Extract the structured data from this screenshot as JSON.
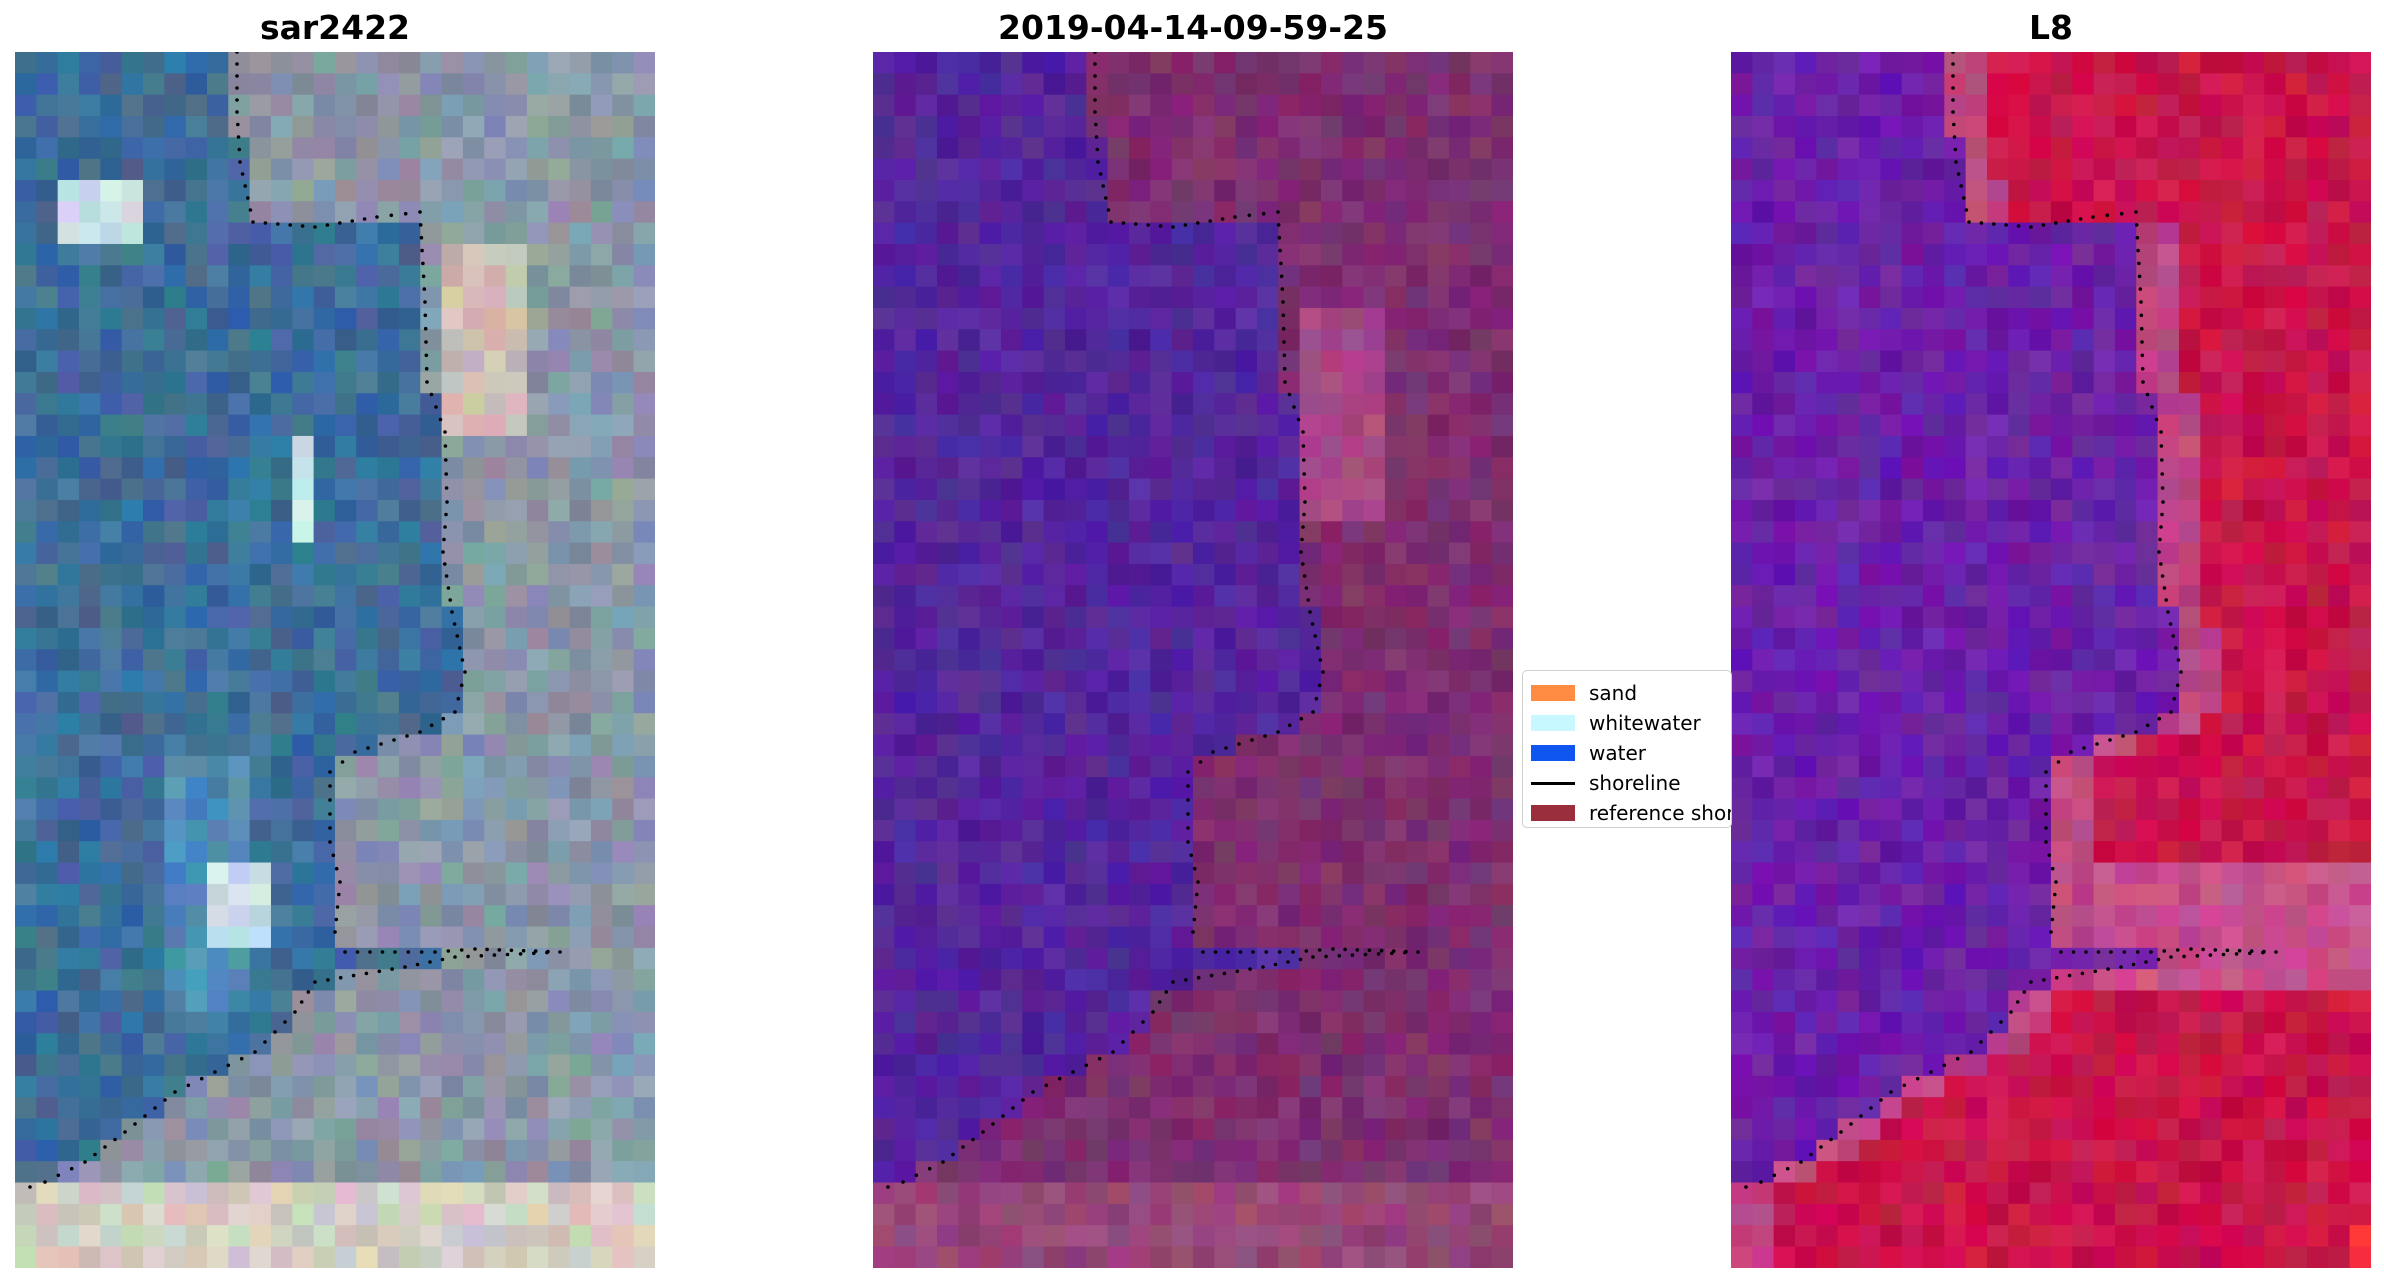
{
  "panels": [
    {
      "id": "rgb",
      "title": "sar2422"
    },
    {
      "id": "classified",
      "title": "2019-04-14-09-59-25"
    },
    {
      "id": "l8",
      "title": "L8"
    }
  ],
  "legend": {
    "items": [
      {
        "label": "sand",
        "color": "#ff8c42",
        "kind": "patch"
      },
      {
        "label": "whitewater",
        "color": "#c8f8ff",
        "kind": "patch"
      },
      {
        "label": "water",
        "color": "#0f55f0",
        "kind": "patch"
      },
      {
        "label": "shoreline",
        "color": "#000000",
        "kind": "line"
      },
      {
        "label": "reference shoreline",
        "color": "#9a2e3c",
        "kind": "patch"
      }
    ]
  },
  "colors": {
    "rgb_water": "#3f6e9a",
    "rgb_land": "#8a97a8",
    "classified_water": "#53259c",
    "classified_land": "#7d2e6e",
    "l8_water": "#6a1fa8",
    "l8_land": "#c9144a",
    "shoreline_dots": "#000000"
  }
}
